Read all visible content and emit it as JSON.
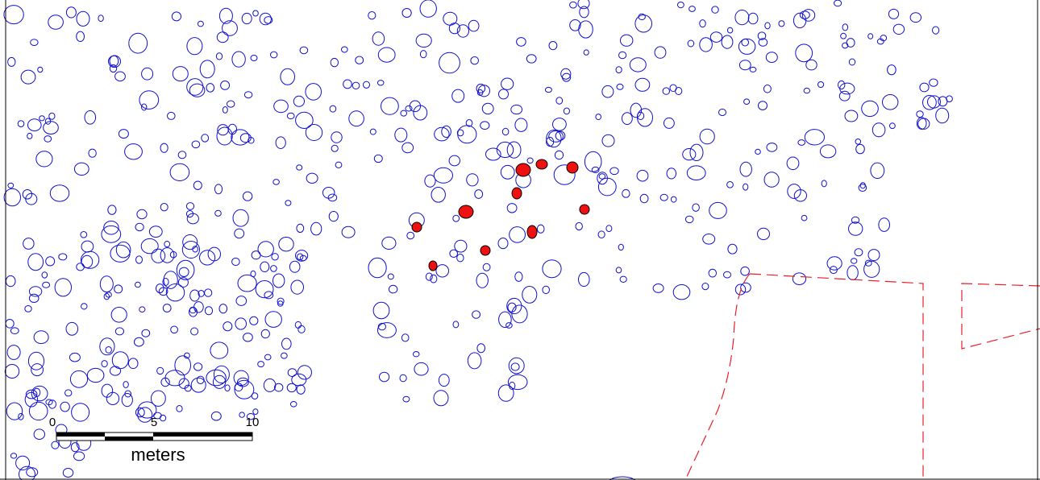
{
  "scale_bar": {
    "ticks": [
      "0",
      "5",
      "10"
    ],
    "unit": "meters"
  }
}
